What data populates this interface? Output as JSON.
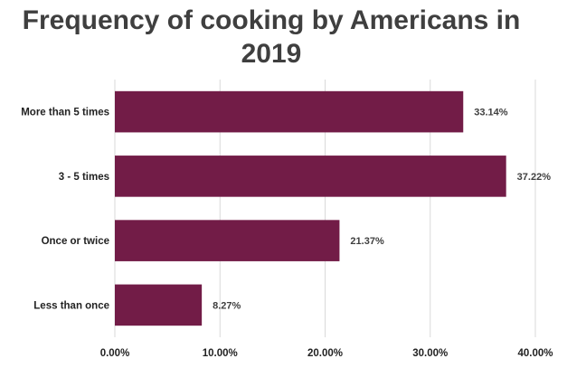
{
  "chart_data": {
    "type": "bar",
    "orientation": "horizontal",
    "title_line1": "Frequency of cooking by Americans in",
    "title_line2": "2019",
    "categories": [
      "More than 5 times",
      "3 - 5 times",
      "Once or twice",
      "Less than once"
    ],
    "values": [
      33.14,
      37.22,
      21.37,
      8.27
    ],
    "data_labels": [
      "33.14%",
      "37.22%",
      "21.37%",
      "8.27%"
    ],
    "xlim": [
      0,
      40
    ],
    "x_ticks": [
      0,
      10,
      20,
      30,
      40
    ],
    "x_tick_labels": [
      "0.00%",
      "10.00%",
      "20.00%",
      "30.00%",
      "40.00%"
    ],
    "grid": "vertical",
    "legend": "none",
    "bar_color": "#721c47",
    "grid_color": "#d9d9d9"
  }
}
